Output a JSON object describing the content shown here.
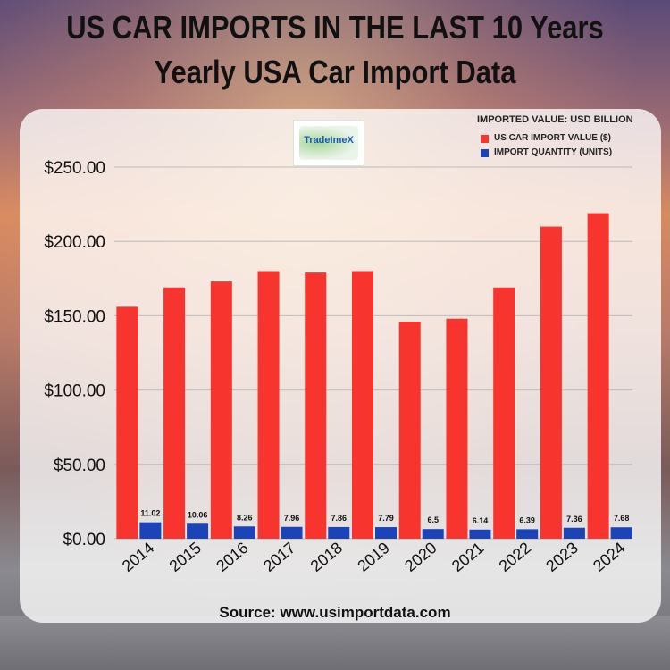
{
  "title": {
    "line1": "US CAR IMPORTS IN THE LAST 10 Years",
    "line2": "Yearly USA Car Import Data"
  },
  "logo": {
    "text": "TradeImeX"
  },
  "legend": {
    "title": "IMPORTED VALUE: USD BILLION",
    "items": [
      {
        "label": "US CAR IMPORT VALUE ($)",
        "color": "#f8342e"
      },
      {
        "label": "IMPORT QUANTITY (UNITS)",
        "color": "#1a44b8"
      }
    ]
  },
  "source": "Source: www.usimportdata.com",
  "chart_data": {
    "type": "bar",
    "categories": [
      "2014",
      "2015",
      "2016",
      "2017",
      "2018",
      "2019",
      "2020",
      "2021",
      "2022",
      "2023",
      "2024"
    ],
    "series": [
      {
        "name": "US CAR IMPORT VALUE ($)",
        "color": "#f8342e",
        "values": [
          156,
          169,
          173,
          180,
          179,
          180,
          146,
          148,
          169,
          210,
          219
        ]
      },
      {
        "name": "IMPORT QUANTITY (UNITS)",
        "color": "#1a44b8",
        "values": [
          11.02,
          10.06,
          8.26,
          7.96,
          7.86,
          7.79,
          6.5,
          6.14,
          6.39,
          7.36,
          7.68
        ],
        "labels": [
          "11.02",
          "10.06",
          "8.26",
          "7.96",
          "7.86",
          "7.79",
          "6.5",
          "6.14",
          "6.39",
          "7.36",
          "7.68"
        ]
      }
    ],
    "yticks": [
      0,
      50,
      100,
      150,
      200,
      250
    ],
    "ytick_labels": [
      "$0.00",
      "$50.00",
      "$100.00",
      "$150.00",
      "$200.00",
      "$250.00"
    ],
    "ylim": [
      0,
      250
    ],
    "grid": true,
    "legend_position": "top-right",
    "xlabel": "",
    "ylabel": ""
  }
}
